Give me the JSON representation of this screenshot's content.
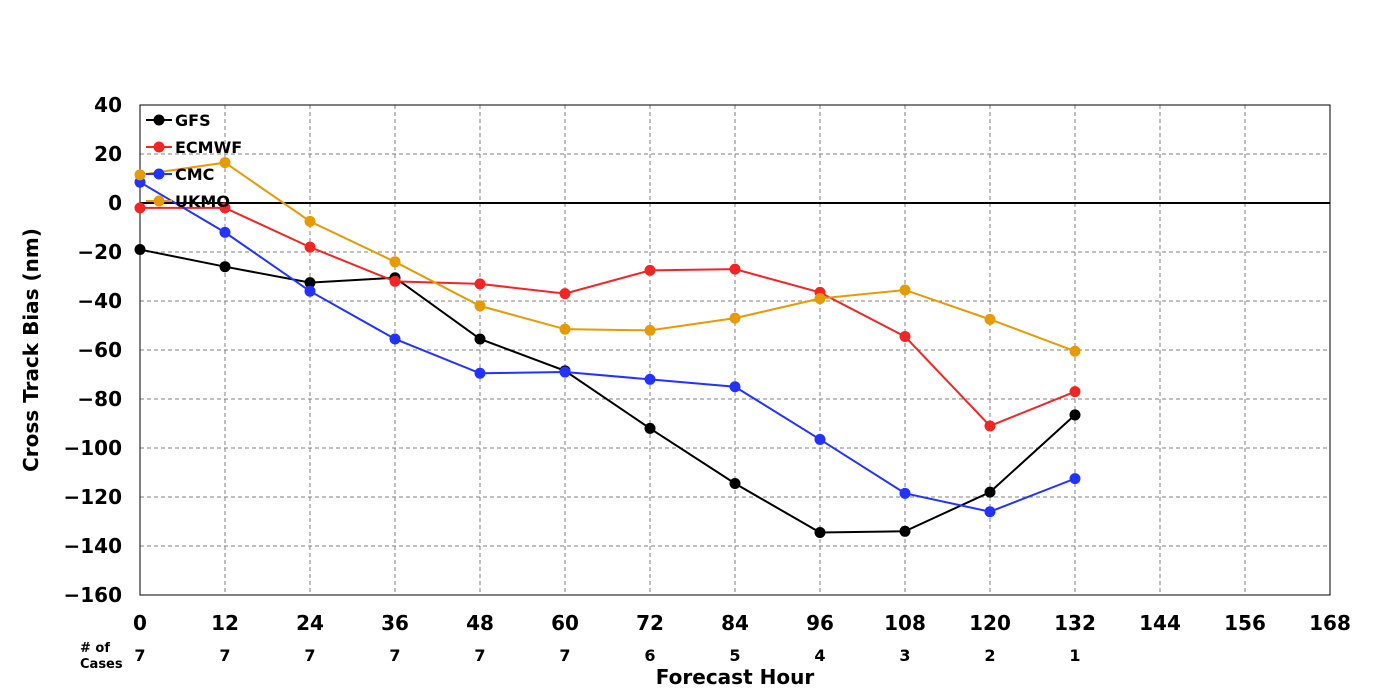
{
  "chart_data": {
    "type": "line",
    "title": "",
    "xlabel": "Forecast Hour",
    "ylabel": "Cross Track Bias (nm)",
    "xlim": [
      0,
      168
    ],
    "ylim": [
      -160,
      40
    ],
    "x_ticks": [
      "0",
      "12",
      "24",
      "36",
      "48",
      "60",
      "72",
      "84",
      "96",
      "108",
      "120",
      "132",
      "144",
      "156",
      "168"
    ],
    "y_ticks": [
      "40",
      "20",
      "0",
      "−20",
      "−40",
      "−60",
      "−80",
      "−100",
      "−120",
      "−140",
      "−160"
    ],
    "grid": true,
    "legend_position": "top-left",
    "zero_line": true,
    "x": [
      0,
      12,
      24,
      36,
      48,
      60,
      72,
      84,
      96,
      108,
      120,
      132
    ],
    "series": [
      {
        "name": "GFS",
        "color": "#000000",
        "values": [
          -19,
          -26,
          -32.5,
          -30.5,
          -55.5,
          -68.5,
          -92,
          -114.5,
          -134.5,
          -134,
          -118,
          -86.5
        ]
      },
      {
        "name": "ECMWF",
        "color": "#f22525",
        "values": [
          -2,
          -2,
          -18,
          -32,
          -33,
          -37,
          -27.5,
          -27,
          -36.5,
          -54.5,
          -91,
          -77
        ]
      },
      {
        "name": "CMC",
        "color": "#2233ff",
        "values": [
          8.5,
          -12,
          -36,
          -55.5,
          -69.5,
          -69,
          -72,
          -75,
          -96.5,
          -118.5,
          -126,
          -112.5
        ]
      },
      {
        "name": "UKMO",
        "color": "#e69b05",
        "values": [
          11.5,
          16.5,
          -7.5,
          -24,
          -42,
          -51.5,
          -52,
          -47,
          -39,
          -35.5,
          -47.5,
          -60.5
        ]
      }
    ],
    "cases_header": "# of Cases",
    "cases_x": [
      0,
      12,
      24,
      36,
      48,
      60,
      72,
      84,
      96,
      108,
      120,
      132
    ],
    "cases": [
      "7",
      "7",
      "7",
      "7",
      "7",
      "7",
      "6",
      "5",
      "4",
      "3",
      "2",
      "1"
    ]
  }
}
